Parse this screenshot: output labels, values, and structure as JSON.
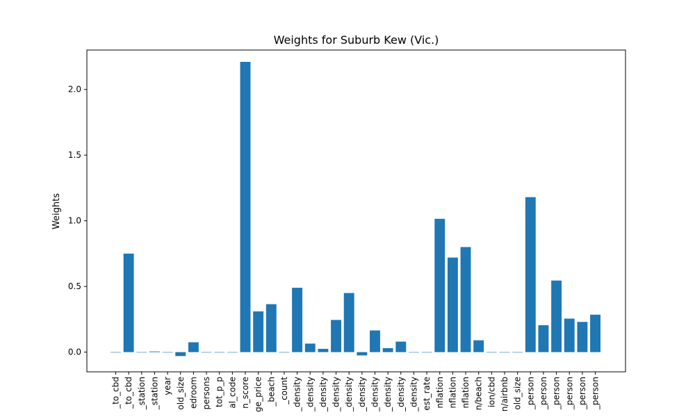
{
  "chart_data": {
    "type": "bar",
    "title": "Weights for Suburb Kew (Vic.)",
    "xlabel": "",
    "ylabel": "Weights",
    "ylim": [
      -0.15,
      2.3
    ],
    "yticks": [
      0.0,
      0.5,
      1.0,
      1.5,
      2.0
    ],
    "ytick_labels": [
      "0.0",
      "0.5",
      "1.0",
      "1.5",
      "2.0"
    ],
    "grid": false,
    "color": "#1f77b4",
    "categories": [
      "_to_cbd",
      "_to_cbd",
      "_station",
      "_station",
      "year",
      "old_size",
      "edroom",
      "persons",
      "tot_p_p",
      "al_code",
      "n_score",
      "ge_price",
      "_beach",
      "_count",
      "_density",
      "_density",
      "_density",
      "_density",
      "_density",
      "_density",
      "_density",
      "_density",
      "_density",
      "_density",
      "est_rate",
      "nflation",
      "nflation",
      "nflation",
      "n/beach",
      "ion/cbd",
      "n/airbnb",
      "old_size",
      "_person",
      "_person",
      "_person",
      "_person",
      "_person",
      "_person"
    ],
    "values": [
      0.0,
      0.75,
      0.0,
      0.005,
      0.0,
      -0.03,
      0.075,
      0.0,
      0.0,
      0.0,
      2.21,
      0.31,
      0.365,
      0.0,
      0.49,
      0.065,
      0.025,
      0.245,
      0.45,
      -0.025,
      0.165,
      0.03,
      0.08,
      0.0,
      0.0,
      1.015,
      0.72,
      0.8,
      0.09,
      0.0,
      0.0,
      0.0,
      1.18,
      0.205,
      0.545,
      0.255,
      0.23,
      0.285
    ]
  }
}
